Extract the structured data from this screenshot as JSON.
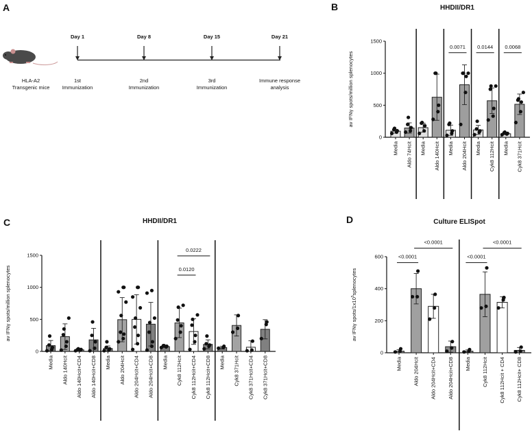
{
  "panel_a": {
    "letter": "A",
    "mouse_label_1": "HLA-A2",
    "mouse_label_2": "Transgenic mice",
    "timepoints": [
      {
        "day": "Day 1",
        "line1": "1st",
        "line2": "Immunization"
      },
      {
        "day": "Day 8",
        "line1": "2nd",
        "line2": "Immunization"
      },
      {
        "day": "Day 15",
        "line1": "3rd",
        "line2": "Immunization"
      },
      {
        "day": "Day 21",
        "line1": "Immune response",
        "line2": "analysis"
      }
    ]
  },
  "chart_data": [
    {
      "panel": "B",
      "type": "bar",
      "title": "HHDII/DR1",
      "ylabel": "av IFNγ spots/million splenocytes",
      "ylim": [
        0,
        1500
      ],
      "yticks": [
        0,
        500,
        1000,
        1500
      ],
      "categories": [
        "Media",
        "Aldo 74Hcit",
        "Media",
        "Aldo 140Hcit",
        "Media",
        "Aldo 204Hcit",
        "Media",
        "Cyk8 112Hcit",
        "Media",
        "Cyk8 371Hcit"
      ],
      "values": [
        95,
        145,
        150,
        625,
        110,
        820,
        115,
        570,
        55,
        515
      ],
      "sd": [
        30,
        80,
        70,
        360,
        80,
        310,
        70,
        200,
        15,
        160
      ],
      "fills": [
        "#e2e2e2",
        "#9e9e9e",
        "#e2e2e2",
        "#9e9e9e",
        "#e2e2e2",
        "#9e9e9e",
        "#e2e2e2",
        "#9e9e9e",
        "#e2e2e2",
        "#9e9e9e"
      ],
      "points": [
        [
          60,
          80,
          100,
          120,
          140
        ],
        [
          80,
          100,
          150,
          200,
          310
        ],
        [
          60,
          100,
          180,
          220,
          230
        ],
        [
          280,
          400,
          500,
          1000,
          1000
        ],
        [
          30,
          60,
          100,
          200,
          220
        ],
        [
          200,
          700,
          950,
          1000,
          1000,
          1000
        ],
        [
          40,
          80,
          100,
          130,
          250
        ],
        [
          270,
          330,
          450,
          750,
          800,
          800
        ],
        [
          40,
          50,
          60,
          70,
          80
        ],
        [
          230,
          400,
          550,
          580,
          600,
          700
        ]
      ],
      "group_separators_after": [
        1,
        3,
        5,
        7
      ],
      "comparisons": [
        {
          "from": 4,
          "to": 5,
          "label": "0.0071",
          "y": 1320
        },
        {
          "from": 6,
          "to": 7,
          "label": "0.0144",
          "y": 1320
        },
        {
          "from": 8,
          "to": 9,
          "label": "0.0068",
          "y": 1320
        }
      ]
    },
    {
      "panel": "C",
      "type": "bar",
      "title": "HHDII/DR1",
      "ylabel": "av IFNγ spots/million splenocytes",
      "ylim": [
        0,
        1500
      ],
      "yticks": [
        0,
        500,
        1000,
        1500
      ],
      "categories": [
        "Media",
        "Aldo 140Hcit",
        "Aldo 140Hcit+CD4",
        "Aldo 140Hcit+CD8",
        "Media",
        "Aldo 204Hcit",
        "Aldo 204Hcit+CD4",
        "Aldo 204Hcit+CD8",
        "Media",
        "Cyk8 112Hcit",
        "Cyk8 112Hcit+CD4",
        "Cyk8 112Hcit+CD8",
        "Media",
        "Cyk8 371Hcit",
        "Cyk8 371Hcit+CD4",
        "Cyk8 371Hcit+CD8"
      ],
      "values": [
        90,
        230,
        25,
        180,
        45,
        495,
        500,
        425,
        75,
        445,
        310,
        110,
        60,
        405,
        65,
        345
      ],
      "sd": [
        80,
        200,
        10,
        180,
        40,
        345,
        385,
        340,
        15,
        230,
        200,
        70,
        20,
        165,
        100,
        150
      ],
      "fills": [
        "#7f7f7f",
        "#a3a3a3",
        "#8a8a8a",
        "#808080",
        "#7f7f7f",
        "#a3a3a3",
        "#ffffff",
        "#808080",
        "#7f7f7f",
        "#a3a3a3",
        "#ffffff",
        "#808080",
        "#7f7f7f",
        "#a3a3a3",
        "#ffffff",
        "#808080"
      ],
      "points": [
        [
          10,
          30,
          60,
          100,
          240
        ],
        [
          20,
          80,
          150,
          260,
          350,
          520
        ],
        [
          10,
          20,
          30,
          30,
          40
        ],
        [
          10,
          50,
          150,
          250,
          460
        ],
        [
          10,
          20,
          40,
          60,
          150
        ],
        [
          150,
          200,
          270,
          300,
          560,
          770,
          930,
          1000,
          1000
        ],
        [
          30,
          120,
          250,
          380,
          520,
          680,
          850,
          1000,
          1000
        ],
        [
          20,
          80,
          150,
          300,
          450,
          520,
          910,
          950
        ],
        [
          60,
          70,
          80,
          90,
          90
        ],
        [
          200,
          300,
          400,
          490,
          690,
          720
        ],
        [
          30,
          150,
          250,
          410,
          500,
          570
        ],
        [
          40,
          80,
          100,
          120,
          240
        ],
        [
          50,
          60,
          80
        ],
        [
          300,
          360,
          560
        ],
        [
          10,
          20,
          160
        ],
        [
          200,
          420,
          460
        ]
      ],
      "group_separators_after": [
        3,
        7,
        11
      ],
      "comparisons": [
        {
          "from": 9,
          "to": 10,
          "label": "0.0120",
          "y": 1190
        },
        {
          "from": 9,
          "to": 11,
          "label": "0.0222",
          "y": 1490
        }
      ]
    },
    {
      "panel": "D",
      "type": "bar",
      "title": "Culture ELISpot",
      "ylabel_main": "av IFNγ spots/1x10",
      "ylabel_sup": "5",
      "ylabel_end": "splenocytes",
      "ylim": [
        0,
        600
      ],
      "yticks": [
        0,
        200,
        400,
        600
      ],
      "categories": [
        "Media",
        "Aldo 204Hcit",
        "Aldo 204Hcit+CD4",
        "Aldo 204Hcit+CD8",
        "Media",
        "Cyk8 112Hcit",
        "Cyk8 112Hcit + CD4",
        "Cyk8 112Hcit+ CD8"
      ],
      "values": [
        10,
        400,
        290,
        38,
        10,
        365,
        315,
        15
      ],
      "sd": [
        10,
        95,
        75,
        35,
        8,
        140,
        35,
        18
      ],
      "fills": [
        "#8a8a8a",
        "#a0a0a0",
        "#ffffff",
        "#8a8a8a",
        "#8a8a8a",
        "#a0a0a0",
        "#ffffff",
        "#8a8a8a"
      ],
      "points": [
        [
          5,
          10,
          25
        ],
        [
          350,
          350,
          510
        ],
        [
          210,
          280,
          365
        ],
        [
          10,
          30,
          70
        ],
        [
          5,
          10,
          20
        ],
        [
          280,
          290,
          530
        ],
        [
          280,
          330,
          345
        ],
        [
          5,
          10,
          35
        ]
      ],
      "group_separators_after": [
        3
      ],
      "comparisons": [
        {
          "from": 0,
          "to": 1,
          "label": "<0.0001",
          "y": 563
        },
        {
          "from": 1,
          "to": 3,
          "label": "<0.0001",
          "y": 653
        },
        {
          "from": 4,
          "to": 5,
          "label": "<0.0001",
          "y": 563
        },
        {
          "from": 5,
          "to": 7,
          "label": "<0.0001",
          "y": 653
        }
      ]
    }
  ]
}
